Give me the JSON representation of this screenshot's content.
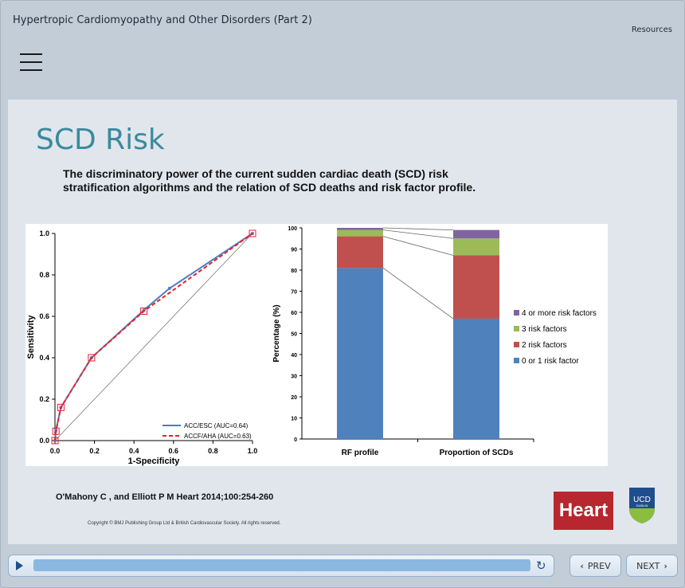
{
  "header": {
    "course_title": "Hypertropic Cardiomyopathy and Other Disorders (Part 2)",
    "resources_label": "Resources",
    "menu_icon": "hamburger-icon"
  },
  "slide": {
    "title": "SCD Risk",
    "subtitle": "The discriminatory power of the current sudden cardiac death (SCD) risk stratification algorithms and the relation of SCD deaths and risk factor profile.",
    "citation": "O'Mahony C , and Elliott P M Heart 2014;100:254-260",
    "copyright": "Copyright © BMJ Publishing Group Ltd & British Cardiovascular Society. All rights reserved.",
    "heart_logo": "Heart",
    "ucd_logo": "UCD DUBLIN"
  },
  "chart_data": [
    {
      "type": "line",
      "xlabel": "1-Specificity",
      "ylabel": "Sensitivity",
      "xlim": [
        0,
        1
      ],
      "ylim": [
        0,
        1
      ],
      "xticks": [
        "0.0",
        "0.2",
        "0.4",
        "0.6",
        "0.8",
        "1.0"
      ],
      "yticks": [
        "0.0",
        "0.2",
        "0.4",
        "0.6",
        "0.8",
        "1.0"
      ],
      "legend_position": "bottom-right",
      "series": [
        {
          "name": "ACC/ESC (AUC=0.64)",
          "color": "#4a7ebf",
          "points": [
            [
              0,
              0
            ],
            [
              0.005,
              0.05
            ],
            [
              0.03,
              0.16
            ],
            [
              0.185,
              0.4
            ],
            [
              0.45,
              0.63
            ],
            [
              0.58,
              0.735
            ],
            [
              1,
              1
            ]
          ]
        },
        {
          "name": "ACCF/AHA (AUC=0.63)",
          "color": "#e8202a",
          "points": [
            [
              0,
              0
            ],
            [
              0.005,
              0.045
            ],
            [
              0.03,
              0.16
            ],
            [
              0.185,
              0.4
            ],
            [
              0.45,
              0.625
            ],
            [
              1,
              1
            ]
          ]
        }
      ],
      "reference_line": [
        [
          0,
          0
        ],
        [
          1,
          1
        ]
      ]
    },
    {
      "type": "bar",
      "stacked": true,
      "categories": [
        "RF profile",
        "Proportion of SCDs"
      ],
      "ylabel": "Percentage (%)",
      "ylim": [
        0,
        100
      ],
      "yticks": [
        "0",
        "10",
        "20",
        "30",
        "40",
        "50",
        "60",
        "70",
        "80",
        "90",
        "100"
      ],
      "legend_position": "right",
      "series": [
        {
          "name": "0 or 1 risk factor",
          "color": "#4f81bd",
          "values": [
            81,
            57
          ]
        },
        {
          "name": "2 risk factors",
          "color": "#c0504d",
          "values": [
            15,
            30
          ]
        },
        {
          "name": "3 risk factors",
          "color": "#9bbb59",
          "values": [
            3,
            8
          ]
        },
        {
          "name": "4 or more risk factors",
          "color": "#8064a2",
          "values": [
            1,
            4
          ]
        }
      ]
    }
  ],
  "player": {
    "progress_percent": 100,
    "play_icon": "play-icon",
    "replay_icon": "replay-icon",
    "replay_glyph": "↻"
  },
  "nav": {
    "prev_label": "PREV",
    "next_label": "NEXT",
    "prev_glyph": "‹",
    "next_glyph": "›"
  }
}
